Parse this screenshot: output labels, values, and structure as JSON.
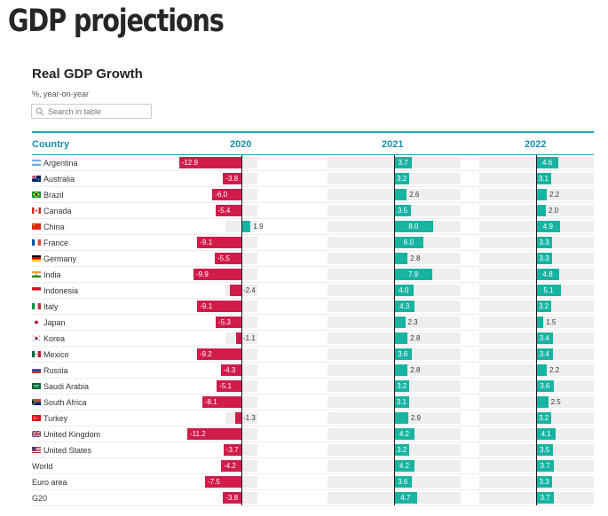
{
  "page_title": "GDP projections",
  "search": {
    "placeholder": "Search in table"
  },
  "colors": {
    "negative": "#d01c4b",
    "positive": "#18b4a1",
    "header": "#1a8fb0",
    "rule": "#1ba3b8"
  },
  "chart_data": {
    "type": "table",
    "title": "Real GDP Growth",
    "subtitle": "%, year-on-year",
    "columns": [
      "Country",
      "2020",
      "2021",
      "2022"
    ],
    "rows": [
      {
        "country": "Argentina",
        "flag": "argentina-flag-icon",
        "values": [
          -12.9,
          3.7,
          4.6
        ]
      },
      {
        "country": "Australia",
        "flag": "australia-flag-icon",
        "values": [
          -3.8,
          3.2,
          3.1
        ]
      },
      {
        "country": "Brazil",
        "flag": "brazil-flag-icon",
        "values": [
          -6.0,
          2.6,
          2.2
        ]
      },
      {
        "country": "Canada",
        "flag": "canada-flag-icon",
        "values": [
          -5.4,
          3.5,
          2.0
        ]
      },
      {
        "country": "China",
        "flag": "china-flag-icon",
        "values": [
          1.9,
          8.0,
          4.9
        ]
      },
      {
        "country": "France",
        "flag": "france-flag-icon",
        "values": [
          -9.1,
          6.0,
          3.3
        ]
      },
      {
        "country": "Germany",
        "flag": "germany-flag-icon",
        "values": [
          -5.5,
          2.8,
          3.3
        ]
      },
      {
        "country": "India",
        "flag": "india-flag-icon",
        "values": [
          -9.9,
          7.9,
          4.8
        ]
      },
      {
        "country": "Indonesia",
        "flag": "indonesia-flag-icon",
        "values": [
          -2.4,
          4.0,
          5.1
        ]
      },
      {
        "country": "Italy",
        "flag": "italy-flag-icon",
        "values": [
          -9.1,
          4.3,
          3.2
        ]
      },
      {
        "country": "Japan",
        "flag": "japan-flag-icon",
        "values": [
          -5.3,
          2.3,
          1.5
        ]
      },
      {
        "country": "Korea",
        "flag": "korea-flag-icon",
        "values": [
          -1.1,
          2.8,
          3.4
        ]
      },
      {
        "country": "Mexico",
        "flag": "mexico-flag-icon",
        "values": [
          -9.2,
          3.6,
          3.4
        ]
      },
      {
        "country": "Russia",
        "flag": "russia-flag-icon",
        "values": [
          -4.3,
          2.8,
          2.2
        ]
      },
      {
        "country": "Saudi Arabia",
        "flag": "saudi-arabia-flag-icon",
        "values": [
          -5.1,
          3.2,
          3.6
        ]
      },
      {
        "country": "South Africa",
        "flag": "south-africa-flag-icon",
        "values": [
          -8.1,
          3.1,
          2.5
        ]
      },
      {
        "country": "Turkey",
        "flag": "turkey-flag-icon",
        "values": [
          -1.3,
          2.9,
          3.2
        ]
      },
      {
        "country": "United Kingdom",
        "flag": "united-kingdom-flag-icon",
        "values": [
          -11.2,
          4.2,
          4.1
        ]
      },
      {
        "country": "United States",
        "flag": "united-states-flag-icon",
        "values": [
          -3.7,
          3.2,
          3.5
        ]
      },
      {
        "country": "World",
        "flag": "",
        "values": [
          -4.2,
          4.2,
          3.7
        ]
      },
      {
        "country": "Euro area",
        "flag": "",
        "values": [
          -7.5,
          3.6,
          3.3
        ]
      },
      {
        "country": "G20",
        "flag": "",
        "values": [
          -3.8,
          4.7,
          3.7
        ]
      }
    ]
  }
}
